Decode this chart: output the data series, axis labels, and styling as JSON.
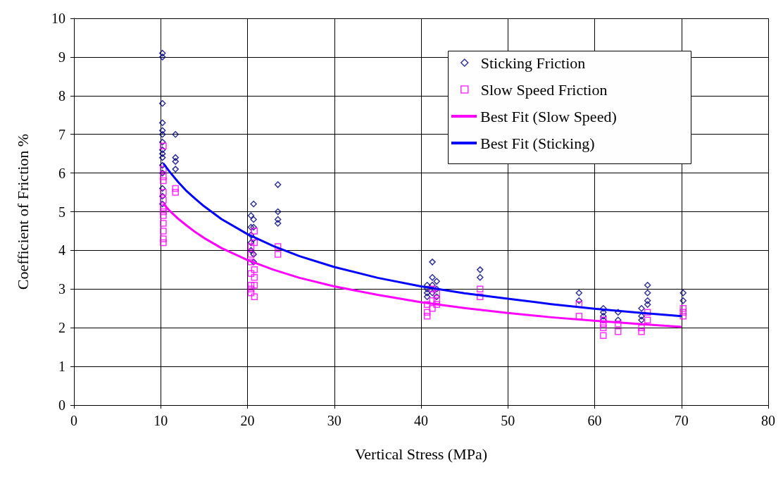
{
  "chart_data": {
    "type": "scatter",
    "xlabel": "Vertical Stress (MPa)",
    "ylabel": "Coefficient of Friction %",
    "xlim": [
      0,
      80
    ],
    "xticks": [
      0,
      10,
      20,
      30,
      40,
      50,
      60,
      70,
      80
    ],
    "ylim": [
      0,
      10
    ],
    "yticks": [
      0,
      1,
      2,
      3,
      4,
      5,
      6,
      7,
      8,
      9,
      10
    ],
    "grid": true,
    "legend": "top right",
    "series": [
      {
        "name": "Sticking Friction",
        "marker": "diamond",
        "color": "#000080",
        "x": [
          10.2,
          10.2,
          10.2,
          10.2,
          10.2,
          10.2,
          10.2,
          10.2,
          10.2,
          10.2,
          10.2,
          10.2,
          10.2,
          10.2,
          10.2,
          11.7,
          11.7,
          11.7,
          11.7,
          20.4,
          20.4,
          20.4,
          20.4,
          20.4,
          20.7,
          20.7,
          20.7,
          20.7,
          20.7,
          20.7,
          23.5,
          23.5,
          23.5,
          23.5,
          40.7,
          40.7,
          40.7,
          40.7,
          41.3,
          41.3,
          41.3,
          41.3,
          41.8,
          41.8,
          41.8,
          46.8,
          46.8,
          58.2,
          58.2,
          61,
          61,
          61,
          61,
          62.7,
          62.7,
          65.4,
          65.4,
          65.4,
          66.1,
          66.1,
          66.1,
          66.1,
          70.2,
          70.2
        ],
        "values": [
          9.1,
          9.0,
          7.8,
          7.3,
          7.1,
          7.0,
          6.8,
          6.6,
          6.5,
          6.4,
          6.2,
          6.0,
          5.6,
          5.4,
          5.2,
          7.0,
          6.4,
          6.3,
          6.1,
          4.9,
          4.6,
          4.4,
          4.2,
          4.0,
          5.2,
          4.8,
          4.6,
          4.3,
          3.9,
          3.7,
          5.7,
          5.0,
          4.8,
          4.7,
          3.1,
          3.0,
          2.9,
          2.8,
          3.7,
          3.3,
          3.1,
          2.9,
          3.2,
          3.0,
          2.8,
          3.5,
          3.3,
          2.9,
          2.7,
          2.5,
          2.4,
          2.3,
          2.2,
          2.4,
          2.2,
          2.5,
          2.3,
          2.2,
          3.1,
          2.9,
          2.7,
          2.6,
          2.9,
          2.7
        ]
      },
      {
        "name": "Slow Speed Friction",
        "marker": "square",
        "color": "#ff00ff",
        "x": [
          10.3,
          10.3,
          10.3,
          10.3,
          10.3,
          10.3,
          10.3,
          10.3,
          10.3,
          10.3,
          10.3,
          10.3,
          10.3,
          11.7,
          11.7,
          20.4,
          20.4,
          20.4,
          20.4,
          20.4,
          20.4,
          20.4,
          20.8,
          20.8,
          20.8,
          20.8,
          20.8,
          20.8,
          23.5,
          23.5,
          40.7,
          40.7,
          40.7,
          41.3,
          41.3,
          41.3,
          41.8,
          41.8,
          41.8,
          46.8,
          46.8,
          58.2,
          58.2,
          61,
          61,
          61,
          61,
          62.7,
          62.7,
          65.4,
          65.4,
          66.1,
          66.1,
          70.2,
          70.2,
          70.2
        ],
        "values": [
          6.7,
          6.1,
          5.9,
          5.8,
          5.5,
          5.3,
          5.1,
          5.0,
          4.9,
          4.7,
          4.5,
          4.3,
          4.2,
          5.6,
          5.5,
          4.1,
          3.9,
          3.7,
          3.4,
          3.1,
          3.0,
          2.9,
          4.5,
          4.2,
          3.5,
          3.3,
          3.1,
          2.8,
          4.1,
          3.9,
          2.6,
          2.4,
          2.3,
          3.0,
          2.7,
          2.5,
          2.9,
          2.7,
          2.6,
          3.0,
          2.8,
          2.6,
          2.3,
          2.2,
          2.1,
          2.0,
          1.8,
          2.1,
          1.9,
          2.0,
          1.9,
          2.4,
          2.2,
          2.5,
          2.4,
          2.3
        ]
      },
      {
        "name": "Best Fit (Slow Speed)",
        "type": "line",
        "marker": "none",
        "color": "#ff00ff",
        "x": [
          10.3,
          11,
          12,
          13,
          14,
          15,
          17,
          20,
          23,
          26,
          30,
          35,
          40,
          45,
          50,
          55,
          60,
          65,
          70
        ],
        "values": [
          5.2,
          5.03,
          4.82,
          4.64,
          4.47,
          4.32,
          4.06,
          3.75,
          3.5,
          3.29,
          3.07,
          2.85,
          2.66,
          2.51,
          2.38,
          2.27,
          2.18,
          2.1,
          2.02
        ]
      },
      {
        "name": "Best Fit (Sticking)",
        "type": "line",
        "marker": "none",
        "color": "#0000ff",
        "x": [
          10.3,
          11,
          12,
          13,
          14,
          15,
          17,
          20,
          23,
          26,
          30,
          35,
          40,
          45,
          50,
          55,
          60,
          65,
          70
        ],
        "values": [
          6.25,
          6.04,
          5.77,
          5.53,
          5.33,
          5.14,
          4.81,
          4.42,
          4.11,
          3.85,
          3.57,
          3.29,
          3.07,
          2.89,
          2.75,
          2.61,
          2.49,
          2.39,
          2.3
        ]
      }
    ]
  }
}
